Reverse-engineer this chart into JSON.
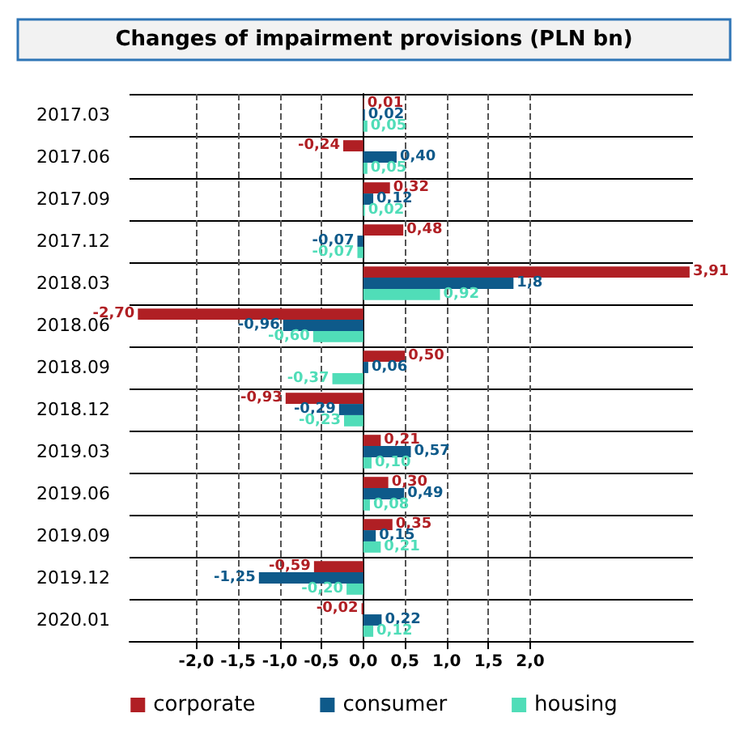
{
  "chart_data": {
    "type": "bar",
    "orientation": "horizontal",
    "title": "Changes of impairment provisions (PLN bn)",
    "categories": [
      "2017.03",
      "2017.06",
      "2017.09",
      "2017.12",
      "2018.03",
      "2018.06",
      "2018.09",
      "2018.12",
      "2019.03",
      "2019.06",
      "2019.09",
      "2019.12",
      "2020.01"
    ],
    "series": [
      {
        "name": "corporate",
        "color": "#b01f24",
        "values": [
          0.01,
          -0.24,
          0.32,
          0.48,
          3.91,
          -2.7,
          0.5,
          -0.93,
          0.21,
          0.3,
          0.35,
          -0.59,
          -0.02
        ],
        "value_labels": [
          "0,01",
          "-0,24",
          "0,32",
          "0,48",
          "3,91",
          "-2,70",
          "0,50",
          "-0,93",
          "0,21",
          "0,30",
          "0,35",
          "-0,59",
          "-0,02"
        ]
      },
      {
        "name": "consumer",
        "color": "#0e5a8a",
        "values": [
          0.02,
          0.4,
          0.12,
          -0.07,
          1.8,
          -0.96,
          0.06,
          -0.29,
          0.57,
          0.49,
          0.15,
          -1.25,
          0.22
        ],
        "value_labels": [
          "0,02",
          "0,40",
          "0,12",
          "-0,07",
          "1,8",
          "-0,96",
          "0,06",
          "-0,29",
          "0,57",
          "0,49",
          "0,15",
          "-1,25",
          "0,22"
        ]
      },
      {
        "name": "housing",
        "color": "#50ddb8",
        "values": [
          0.05,
          0.05,
          0.02,
          -0.07,
          0.92,
          -0.6,
          -0.37,
          -0.23,
          0.1,
          0.08,
          0.21,
          -0.2,
          0.12
        ],
        "value_labels": [
          "0,05",
          "0,05",
          "0,02",
          "-0,07",
          "0,92",
          "-0,60",
          "-0,37",
          "-0,23",
          "0,10",
          "0,08",
          "0,21",
          "-0,20",
          "0,12"
        ]
      }
    ],
    "xlim": [
      -2.8,
      3.95
    ],
    "xticks": [
      {
        "value": -2,
        "label": "-2,0"
      },
      {
        "value": -1.5,
        "label": "-1,5"
      },
      {
        "value": -1,
        "label": "-1,0"
      },
      {
        "value": -0.5,
        "label": "-0,5"
      },
      {
        "value": 0,
        "label": "0,0"
      },
      {
        "value": 0.5,
        "label": "0,5"
      },
      {
        "value": 1,
        "label": "1,0"
      },
      {
        "value": 1.5,
        "label": "1,5"
      },
      {
        "value": 2,
        "label": "2,0"
      }
    ],
    "grid": true,
    "legend": "bottom"
  }
}
